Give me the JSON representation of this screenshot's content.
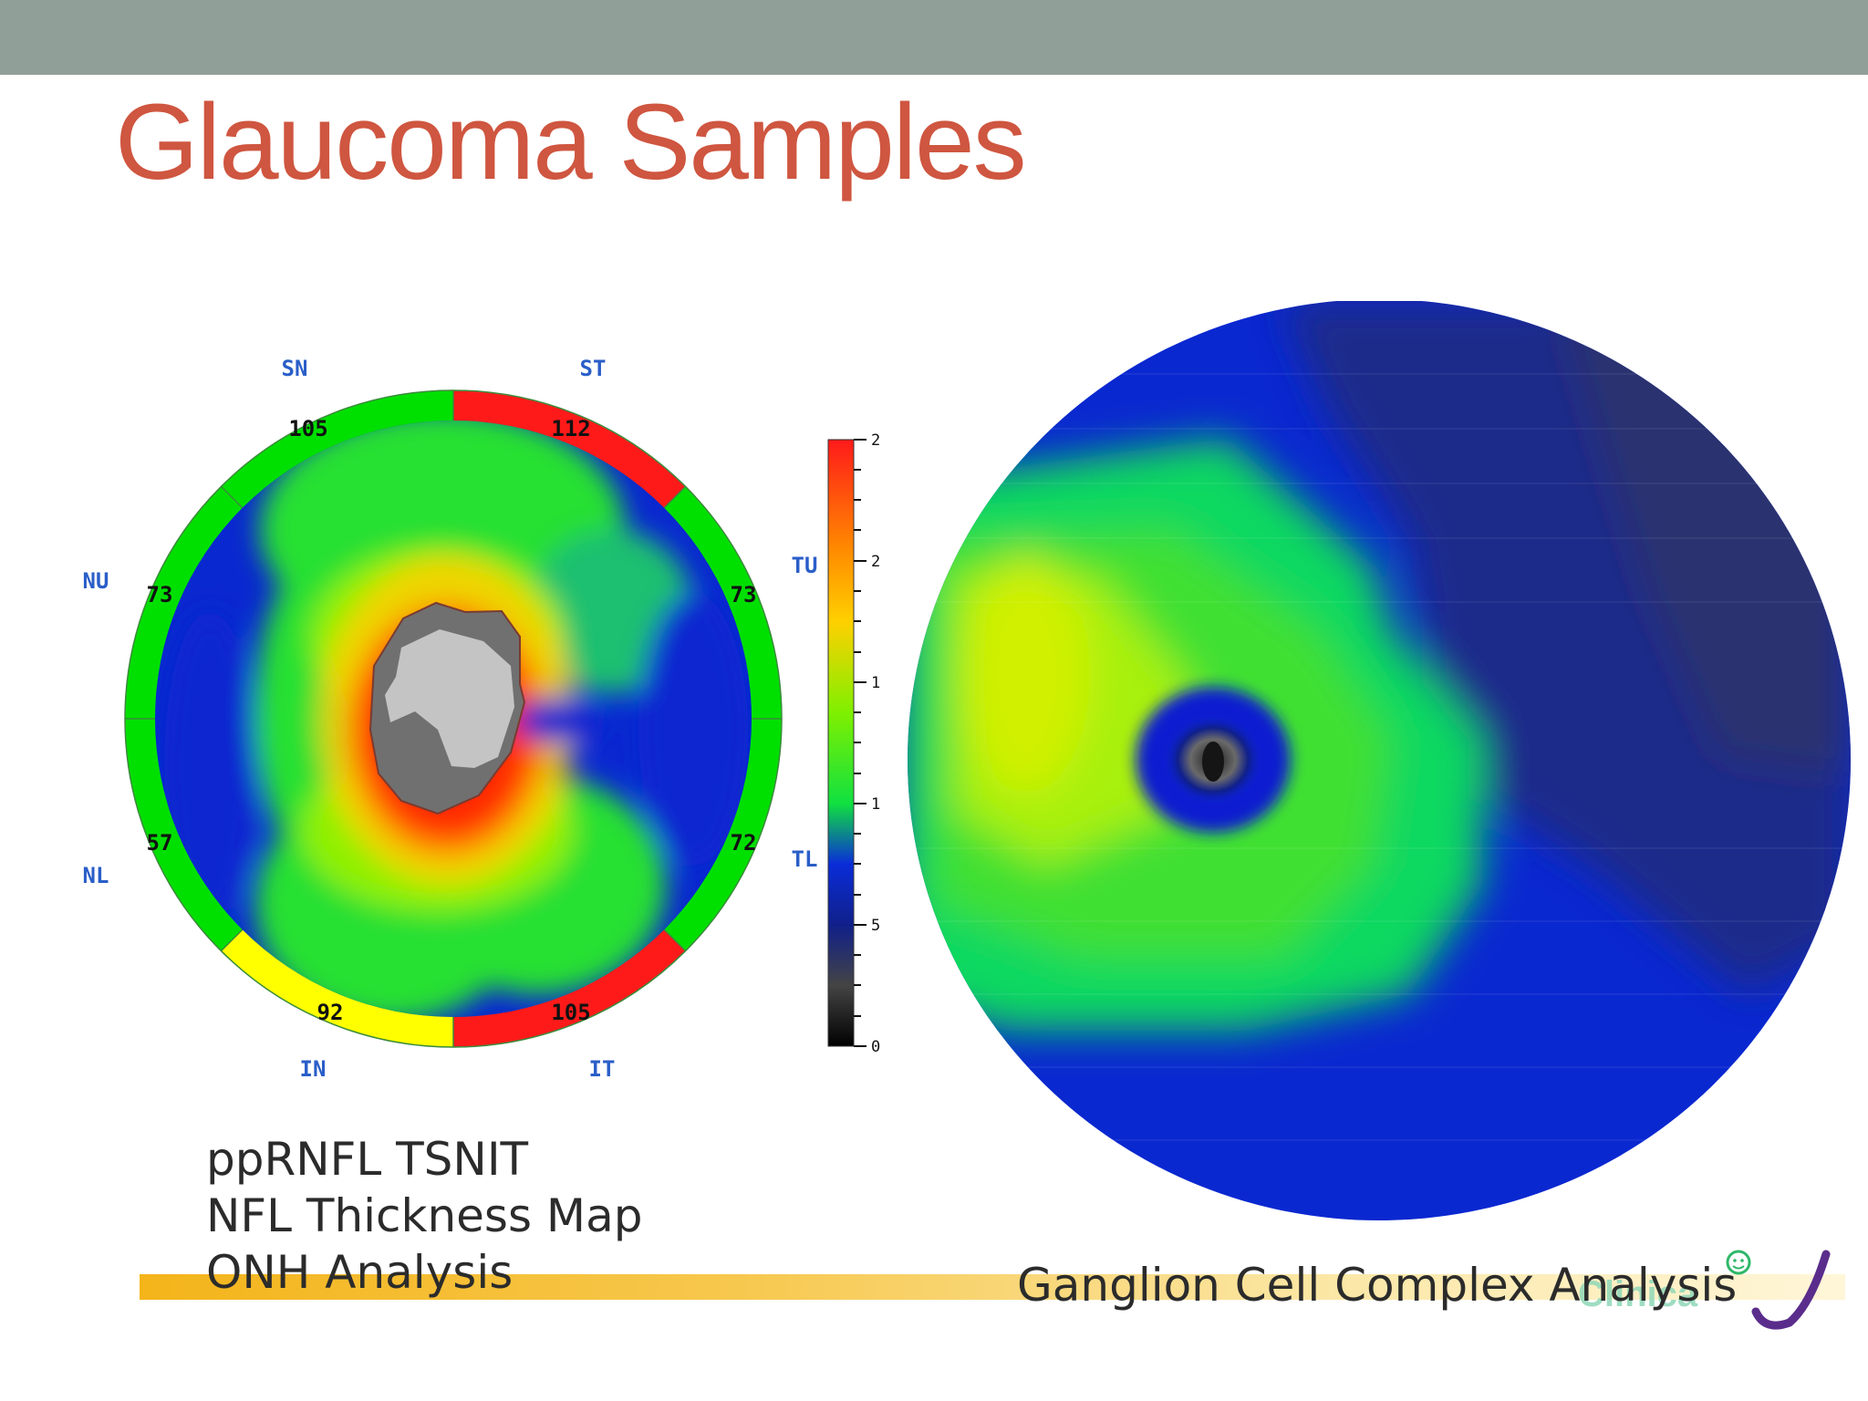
{
  "slide": {
    "title": "Glaucoma Samples"
  },
  "rnfl_map": {
    "sector_labels": {
      "sn": "SN",
      "st": "ST",
      "tu": "TU",
      "tl": "TL",
      "it": "IT",
      "in": "IN",
      "nl": "NL",
      "nu": "NU"
    },
    "sector_values": {
      "sn": "105",
      "st": "112",
      "tu": "73",
      "tl": "72",
      "it": "105",
      "in": "92",
      "nl": "57",
      "nu": "73"
    },
    "sector_colors": {
      "normal": "#00e000",
      "borderline": "#ffff00",
      "abnormal": "#ff1a1a"
    }
  },
  "color_scale": {
    "tick_labels": [
      "2",
      "2",
      "1",
      "1",
      "5",
      "0"
    ]
  },
  "captions": {
    "left_lines": [
      "ppRNFL TSNIT",
      "NFL Thickness Map",
      "ONH Analysis"
    ],
    "right": "Ganglion Cell Complex Analysis"
  },
  "logo": {
    "text": "Clinica"
  },
  "theme": {
    "title_color": "#cf5640",
    "topbar_color": "#909f98",
    "underline_color": "#f4b41a"
  }
}
